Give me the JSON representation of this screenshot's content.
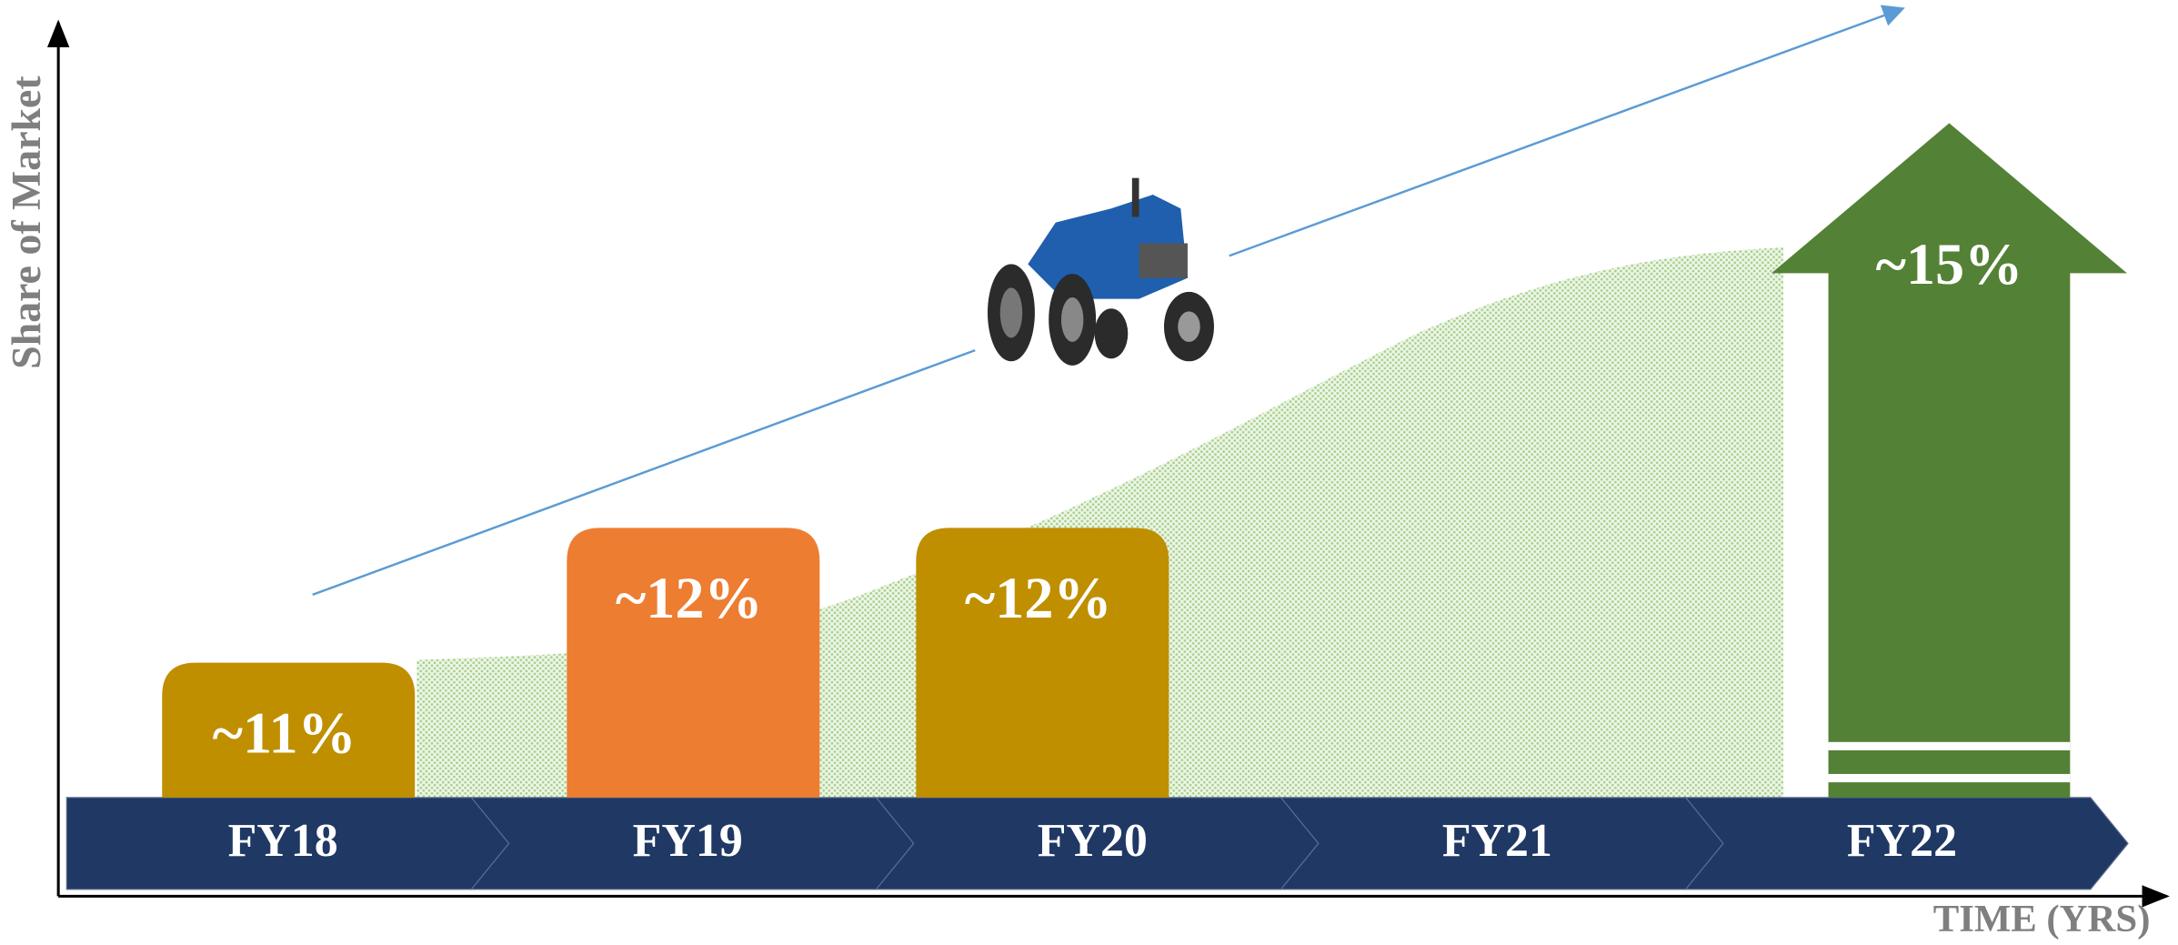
{
  "chart_data": {
    "type": "bar",
    "y_label": "Share of Market",
    "x_label": "TIME (YRS)",
    "categories": [
      "FY18",
      "FY19",
      "FY20",
      "FY21",
      "FY22"
    ],
    "values": [
      11,
      12,
      12,
      null,
      15
    ],
    "value_labels": [
      "~11%",
      "~12%",
      "~12%",
      null,
      "~15%"
    ],
    "colors": [
      "#bf8f00",
      "#ed7d31",
      "#bf8f00",
      null,
      "#538135"
    ],
    "last_as_arrow": true,
    "ylim": [
      10,
      15.5
    ]
  }
}
